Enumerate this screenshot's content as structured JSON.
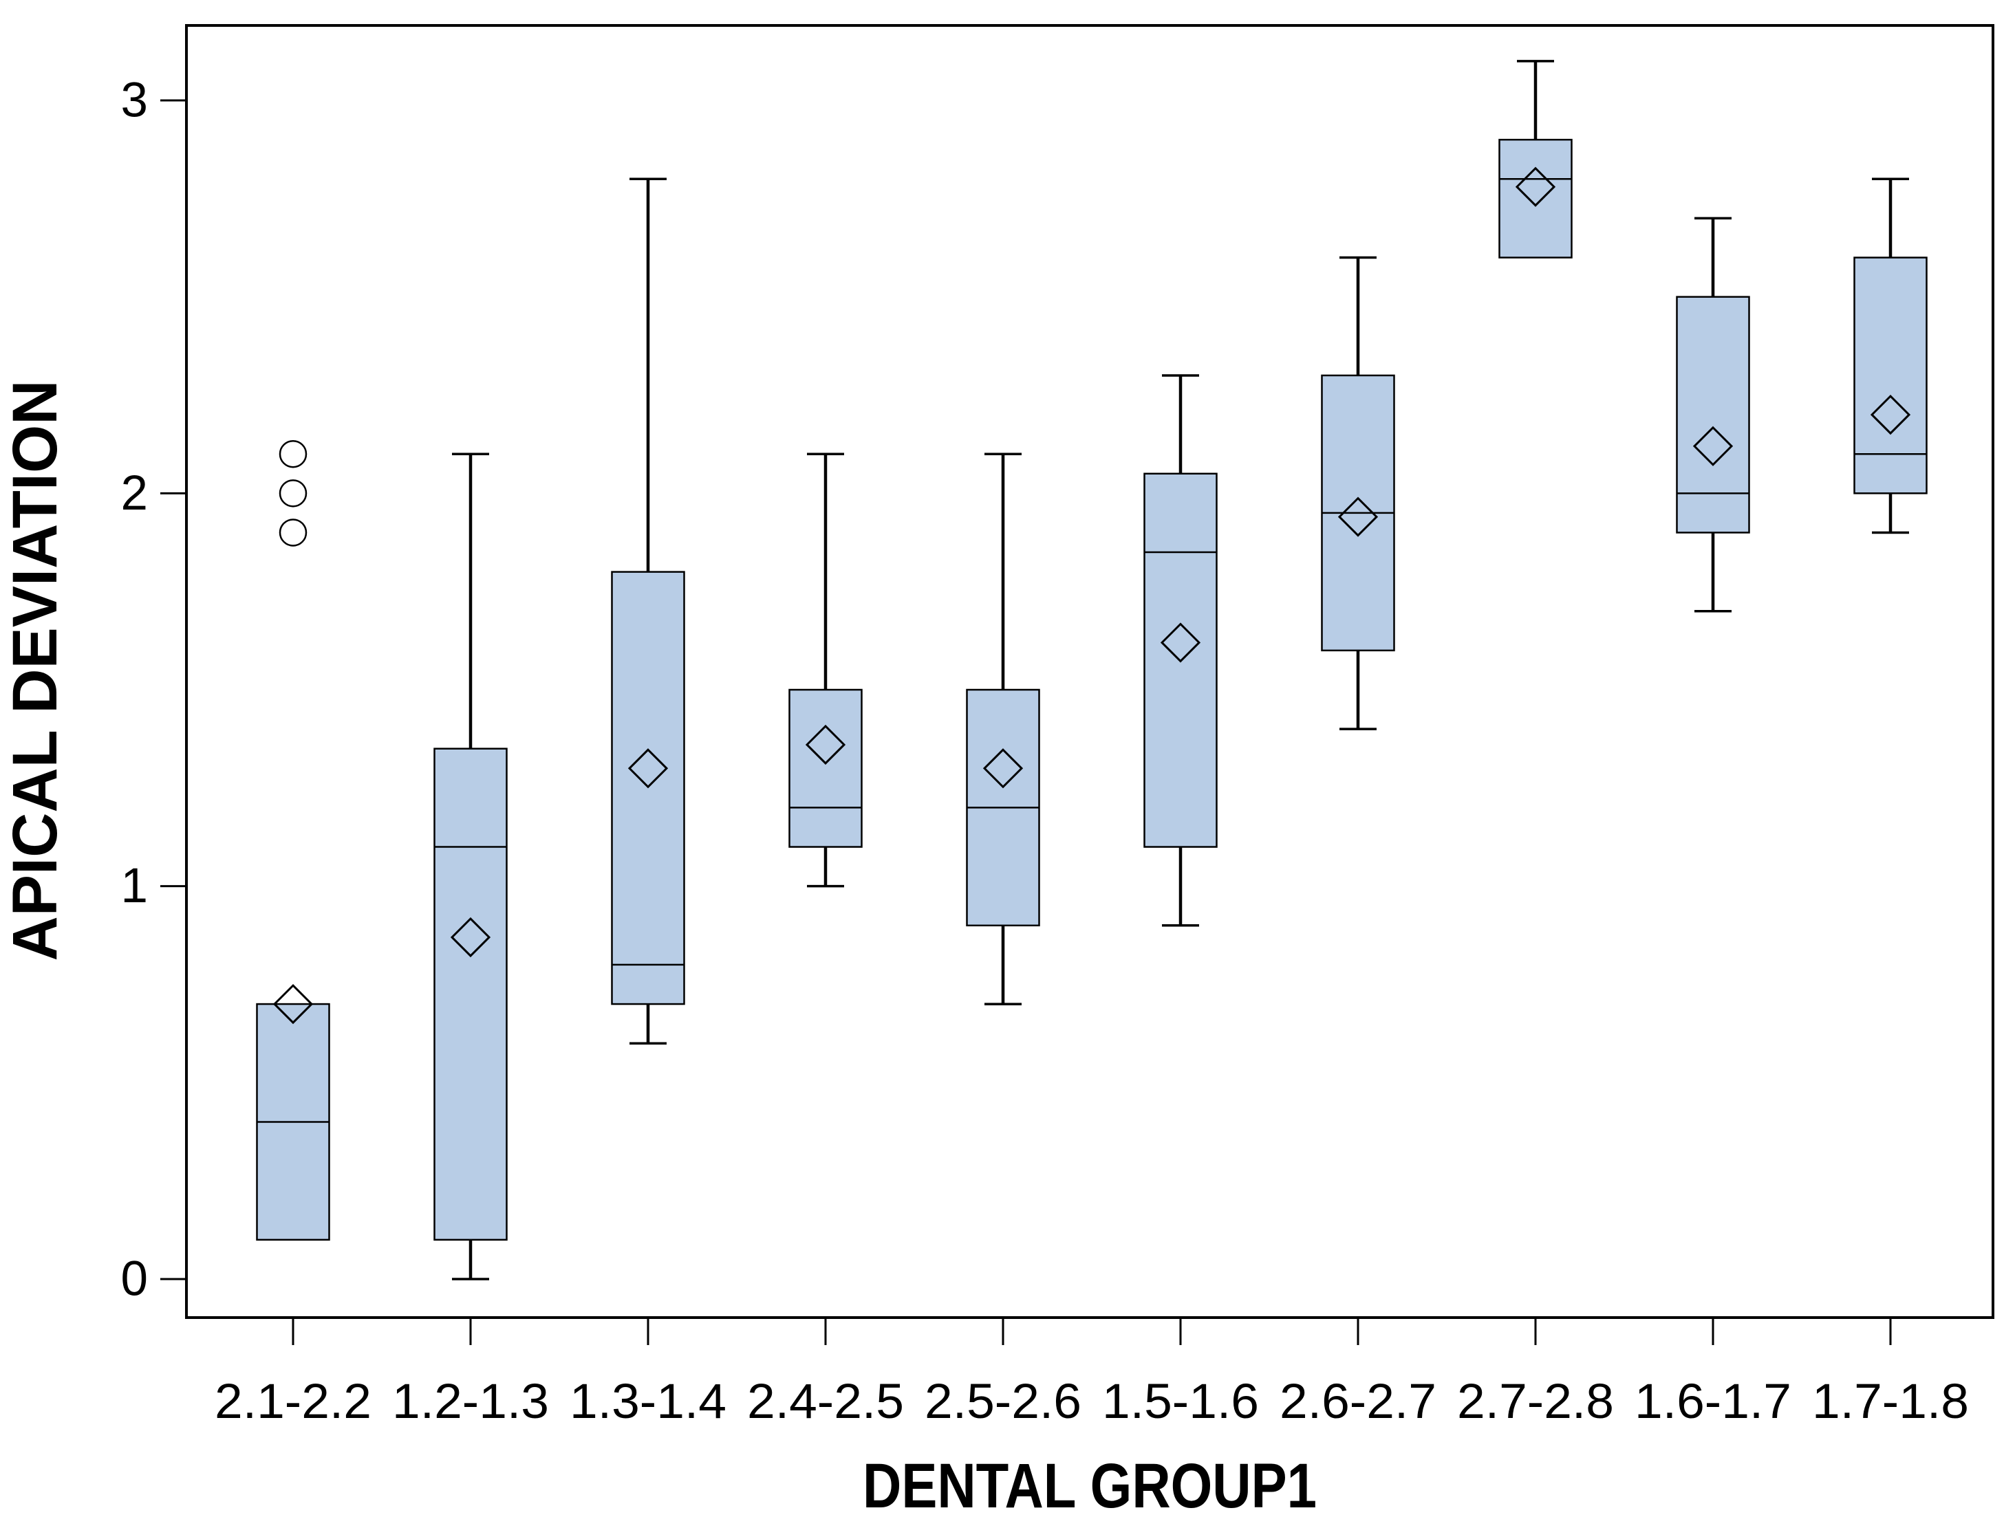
{
  "page": {
    "background": "#ffffff"
  },
  "chart_data": {
    "type": "boxplot",
    "title": "",
    "xlabel": "DENTAL GROUP1",
    "ylabel": "APICAL DEVIATION",
    "yticks": [
      0,
      1,
      2,
      3
    ],
    "ylim": [
      -0.1,
      3.19
    ],
    "grid": false,
    "legend": "none",
    "box_fill_color": "#b8cde6",
    "line_color": "#000000",
    "background_color": "#ffffff",
    "marker_legend": {
      "diamond": "group mean",
      "circle": "outlier",
      "horizontal_line_in_box": "median"
    },
    "categories": [
      "2.1-2.2",
      "1.2-1.3",
      "1.3-1.4",
      "2.4-2.5",
      "2.5-2.6",
      "1.5-1.6",
      "2.6-2.7",
      "2.7-2.8",
      "1.6-1.7",
      "1.7-1.8"
    ],
    "boxes": [
      {
        "category": "2.1-2.2",
        "whisker_low": null,
        "q1": 0.1,
        "median": 0.4,
        "q3": 0.7,
        "whisker_high": null,
        "mean": 0.7,
        "outliers": [
          1.9,
          2.0,
          2.1
        ]
      },
      {
        "category": "1.2-1.3",
        "whisker_low": 0.0,
        "q1": 0.1,
        "median": 1.1,
        "q3": 1.35,
        "whisker_high": 2.1,
        "mean": 0.87,
        "outliers": []
      },
      {
        "category": "1.3-1.4",
        "whisker_low": 0.6,
        "q1": 0.7,
        "median": 0.8,
        "q3": 1.8,
        "whisker_high": 2.8,
        "mean": 1.3,
        "outliers": []
      },
      {
        "category": "2.4-2.5",
        "whisker_low": 1.0,
        "q1": 1.1,
        "median": 1.2,
        "q3": 1.5,
        "whisker_high": 2.1,
        "mean": 1.36,
        "outliers": []
      },
      {
        "category": "2.5-2.6",
        "whisker_low": 0.7,
        "q1": 0.9,
        "median": 1.2,
        "q3": 1.5,
        "whisker_high": 2.1,
        "mean": 1.3,
        "outliers": []
      },
      {
        "category": "1.5-1.6",
        "whisker_low": 0.9,
        "q1": 1.1,
        "median": 1.85,
        "q3": 2.05,
        "whisker_high": 2.3,
        "mean": 1.62,
        "outliers": []
      },
      {
        "category": "2.6-2.7",
        "whisker_low": 1.4,
        "q1": 1.6,
        "median": 1.95,
        "q3": 2.3,
        "whisker_high": 2.6,
        "mean": 1.94,
        "outliers": []
      },
      {
        "category": "2.7-2.8",
        "whisker_low": null,
        "q1": 2.6,
        "median": 2.8,
        "q3": 2.9,
        "whisker_high": 3.1,
        "mean": 2.78,
        "outliers": []
      },
      {
        "category": "1.6-1.7",
        "whisker_low": 1.7,
        "q1": 1.9,
        "median": 2.0,
        "q3": 2.5,
        "whisker_high": 2.7,
        "mean": 2.12,
        "outliers": []
      },
      {
        "category": "1.7-1.8",
        "whisker_low": 1.9,
        "q1": 2.0,
        "median": 2.1,
        "q3": 2.6,
        "whisker_high": 2.8,
        "mean": 2.2,
        "outliers": []
      }
    ]
  }
}
